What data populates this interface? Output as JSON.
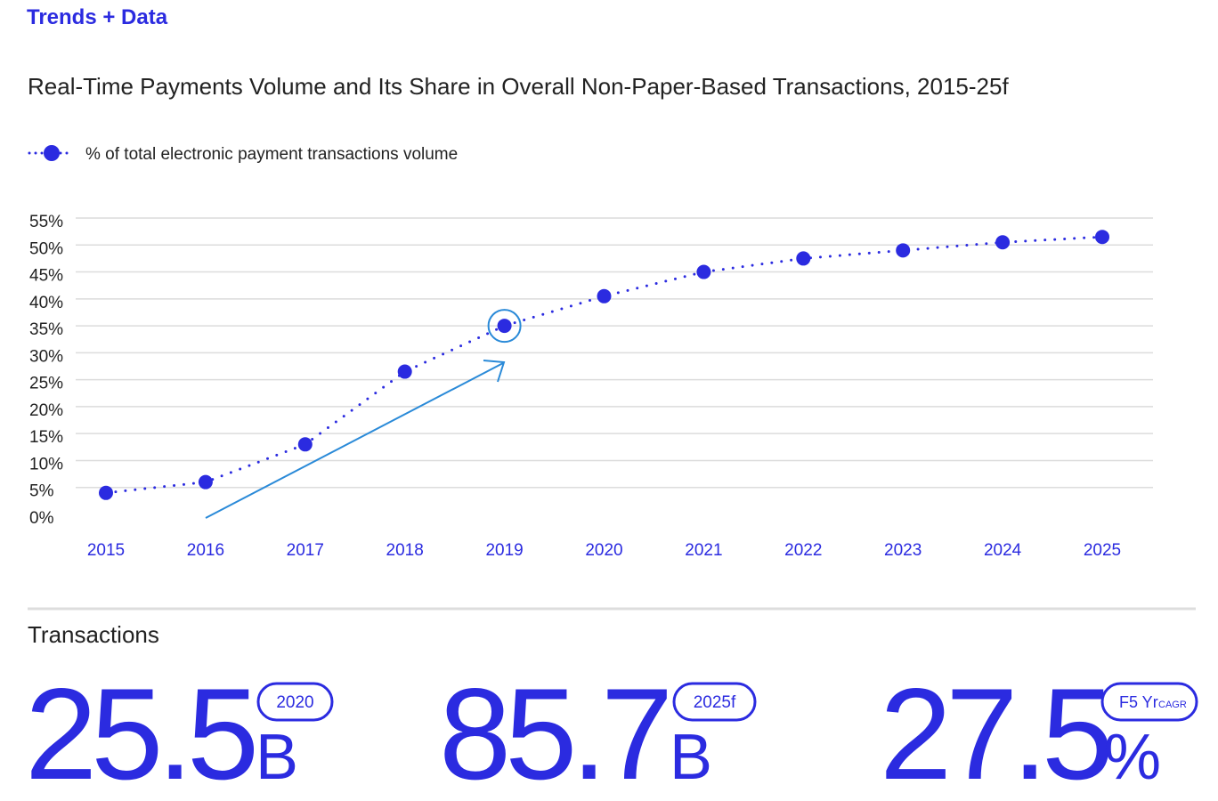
{
  "header": {
    "title": "Trends + Data"
  },
  "chart_data": {
    "type": "line",
    "title": "Real-Time Payments Volume and Its Share in Overall Non-Paper-Based Transactions, 2015-25f",
    "categories": [
      "2015",
      "2016",
      "2017",
      "2018",
      "2019",
      "2020",
      "2021",
      "2022",
      "2023",
      "2024",
      "2025"
    ],
    "series": [
      {
        "name": "% of total electronic payment transactions volume",
        "color": "#2b2be0",
        "values": [
          4,
          6,
          13,
          26.5,
          35,
          40.5,
          45,
          47.5,
          49,
          50.5,
          51.5
        ]
      }
    ],
    "ylim": [
      0,
      55
    ],
    "yticks": [
      {
        "value": 0,
        "label": "0%"
      },
      {
        "value": 5,
        "label": "5%"
      },
      {
        "value": 10,
        "label": "10%"
      },
      {
        "value": 15,
        "label": "15%"
      },
      {
        "value": 20,
        "label": "20%"
      },
      {
        "value": 25,
        "label": "25%"
      },
      {
        "value": 30,
        "label": "30%"
      },
      {
        "value": 35,
        "label": "35%"
      },
      {
        "value": 40,
        "label": "40%"
      },
      {
        "value": 45,
        "label": "45%"
      },
      {
        "value": 50,
        "label": "50%"
      },
      {
        "value": 55,
        "label": "55%"
      }
    ],
    "grid": true,
    "legend": "top-left"
  },
  "stats": {
    "title": "Transactions",
    "items": [
      {
        "value": "25.5",
        "unit": "B",
        "tag": "2020"
      },
      {
        "value": "85.7",
        "unit": "B",
        "tag": "2025f"
      },
      {
        "value": "27.5",
        "unit": "%",
        "tag": "F5 Yr",
        "tag_small": "CAGR"
      }
    ]
  }
}
